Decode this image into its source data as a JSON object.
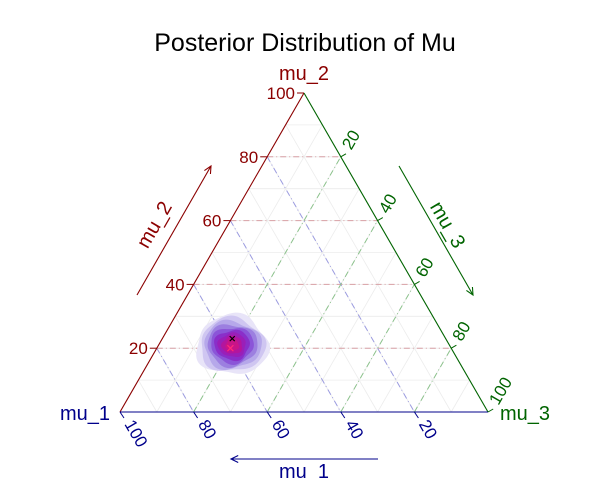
{
  "chart_data": {
    "type": "ternary-density",
    "title": "Posterior Distribution of Mu",
    "axes": {
      "mu_1": {
        "corner_label": "mu_1",
        "arrow_label": "mu_1",
        "color": "#00008b",
        "ticks": [
          20,
          40,
          60,
          80,
          100
        ],
        "tick_labels": [
          "20",
          "40",
          "60",
          "80",
          "100"
        ]
      },
      "mu_2": {
        "corner_label": "mu_2",
        "arrow_label": "mu_2",
        "color": "#8b0000",
        "ticks": [
          20,
          40,
          60,
          80,
          100
        ],
        "tick_labels": [
          "20",
          "40",
          "60",
          "80",
          "100"
        ]
      },
      "mu_3": {
        "corner_label": "mu_3",
        "arrow_label": "mu_3",
        "color": "#006400",
        "ticks": [
          20,
          40,
          60,
          80,
          100
        ],
        "tick_labels": [
          "20",
          "40",
          "60",
          "80",
          "100"
        ]
      }
    },
    "range": [
      0,
      100
    ],
    "grid": true,
    "reference_point": {
      "mu_1": 60,
      "mu_2": 20,
      "mu_3": 20
    },
    "point_estimate": {
      "mu_1": 58,
      "mu_2": 23,
      "mu_3": 19
    },
    "density": {
      "center": {
        "mu_1": 59,
        "mu_2": 21,
        "mu_3": 20
      },
      "levels": [
        {
          "level": 0.1,
          "color": "#e8e4f8"
        },
        {
          "level": 0.2,
          "color": "#cfc6f1"
        },
        {
          "level": 0.3,
          "color": "#b6a8ea"
        },
        {
          "level": 0.4,
          "color": "#9c7fe0"
        },
        {
          "level": 0.5,
          "color": "#8b55d8"
        },
        {
          "level": 0.6,
          "color": "#8a2fc9"
        },
        {
          "level": 0.7,
          "color": "#9a1fb8"
        },
        {
          "level": 0.8,
          "color": "#b3159e"
        },
        {
          "level": 0.9,
          "color": "#c81488"
        }
      ]
    }
  }
}
